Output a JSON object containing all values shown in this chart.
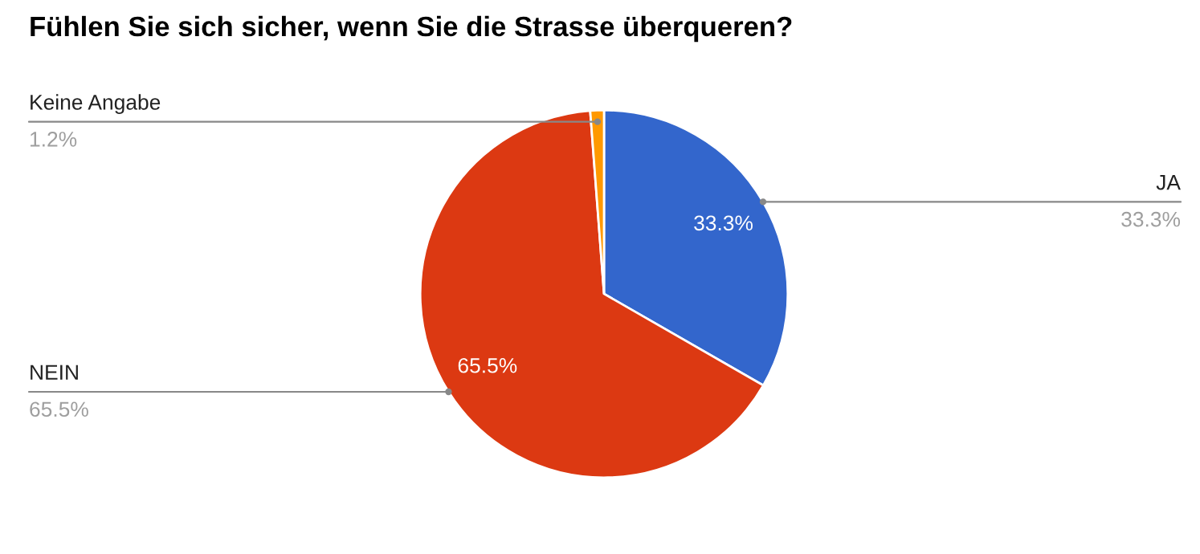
{
  "chart_data": {
    "type": "pie",
    "title": "Fühlen Sie sich sicher, wenn Sie die Strasse überqueren?",
    "categories": [
      "JA",
      "NEIN",
      "Keine Angabe"
    ],
    "values": [
      33.3,
      65.5,
      1.2
    ],
    "colors": [
      "#3366cc",
      "#dc3912",
      "#ff9900"
    ],
    "value_labels": [
      "33.3%",
      "65.5%",
      "1.2%"
    ]
  }
}
